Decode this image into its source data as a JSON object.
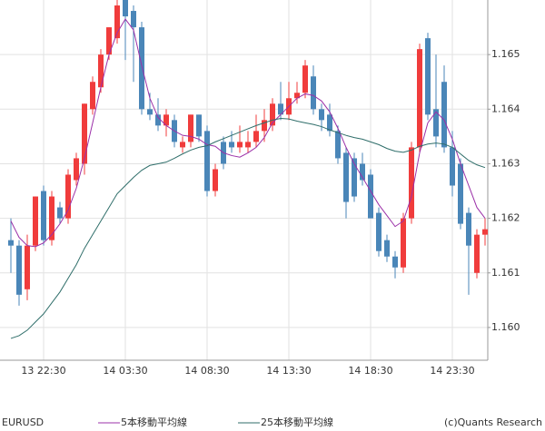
{
  "chart_data": {
    "type": "candlestick",
    "symbol": "EURUSD",
    "credit": "(c)Quants Research",
    "categories": [
      null,
      null,
      null,
      null,
      "13 22:30",
      null,
      null,
      null,
      null,
      null,
      null,
      null,
      null,
      null,
      "14 03:30",
      null,
      null,
      null,
      null,
      null,
      null,
      null,
      null,
      null,
      "14 08:30",
      null,
      null,
      null,
      null,
      null,
      null,
      null,
      null,
      null,
      "14 13:30",
      null,
      null,
      null,
      null,
      null,
      null,
      null,
      null,
      null,
      "14 18:30",
      null,
      null,
      null,
      null,
      null,
      null,
      null,
      null,
      null,
      "14 23:30",
      null,
      null,
      null,
      null
    ],
    "open": [
      1.1616,
      1.1615,
      1.1607,
      1.1615,
      1.1625,
      1.1616,
      1.1622,
      1.162,
      1.1627,
      1.163,
      1.164,
      1.1644,
      1.165,
      1.1653,
      1.166,
      1.1658,
      1.1655,
      1.164,
      1.1639,
      1.1637,
      1.1638,
      1.1633,
      1.1634,
      1.1639,
      1.1636,
      1.1625,
      1.1634,
      1.1634,
      1.1633,
      1.1633,
      1.1634,
      1.1636,
      1.1637,
      1.1641,
      1.1639,
      1.1642,
      1.1643,
      1.1646,
      1.164,
      1.1639,
      1.1636,
      1.1632,
      1.1631,
      1.163,
      1.1628,
      1.1621,
      1.1616,
      1.1613,
      1.1611,
      1.162,
      1.1633,
      1.1653,
      1.164,
      1.1645,
      1.1633,
      1.163,
      1.1621,
      1.161,
      1.1617
    ],
    "high": [
      1.162,
      1.1616,
      1.1617,
      1.1624,
      1.1626,
      1.1625,
      1.1623,
      1.1629,
      1.1632,
      1.1641,
      1.1646,
      1.1651,
      1.1655,
      1.166,
      1.1661,
      1.1659,
      1.1656,
      1.1643,
      1.1642,
      1.164,
      1.1639,
      1.1635,
      1.1639,
      1.1639,
      1.1637,
      1.163,
      1.1635,
      1.1636,
      1.1637,
      1.1636,
      1.1639,
      1.164,
      1.1642,
      1.1645,
      1.1645,
      1.1645,
      1.1649,
      1.1648,
      1.1641,
      1.1641,
      1.1637,
      1.1633,
      1.1632,
      1.1632,
      1.1629,
      1.1622,
      1.1617,
      1.1614,
      1.1621,
      1.1634,
      1.1652,
      1.1654,
      1.165,
      1.1648,
      1.1636,
      1.1631,
      1.1622,
      1.1618,
      1.162
    ],
    "low": [
      1.161,
      1.1604,
      1.1605,
      1.1614,
      1.1615,
      1.1615,
      1.1619,
      1.1619,
      1.1626,
      1.1628,
      1.1639,
      1.1643,
      1.1649,
      1.1652,
      1.1649,
      1.1645,
      1.1639,
      1.1638,
      1.1636,
      1.1635,
      1.1633,
      1.1632,
      1.1633,
      1.1634,
      1.1624,
      1.1624,
      1.1629,
      1.1632,
      1.1632,
      1.1632,
      1.1633,
      1.1634,
      1.1636,
      1.1638,
      1.1638,
      1.1641,
      1.1642,
      1.1639,
      1.1636,
      1.1635,
      1.163,
      1.162,
      1.1623,
      1.1626,
      1.162,
      1.1613,
      1.1612,
      1.1609,
      1.161,
      1.1619,
      1.1632,
      1.1638,
      1.1633,
      1.1632,
      1.1624,
      1.1618,
      1.1606,
      1.1609,
      1.1615
    ],
    "close": [
      1.1615,
      1.1606,
      1.1615,
      1.1624,
      1.1616,
      1.1624,
      1.162,
      1.1628,
      1.1631,
      1.1641,
      1.1645,
      1.165,
      1.1655,
      1.1659,
      1.1657,
      1.1655,
      1.164,
      1.1639,
      1.1637,
      1.1639,
      1.1634,
      1.1634,
      1.1639,
      1.1635,
      1.1625,
      1.1629,
      1.163,
      1.1633,
      1.1634,
      1.1634,
      1.1636,
      1.1638,
      1.1641,
      1.1639,
      1.1642,
      1.1643,
      1.1648,
      1.164,
      1.1638,
      1.1636,
      1.1631,
      1.1623,
      1.1624,
      1.1627,
      1.162,
      1.1614,
      1.1613,
      1.1611,
      1.162,
      1.1633,
      1.1651,
      1.1639,
      1.1635,
      1.1633,
      1.1626,
      1.1619,
      1.1615,
      1.1617,
      1.1618
    ],
    "up_color": "#f03c3c",
    "down_color": "#4a86b8",
    "series": [
      {
        "name": "5本移動平均線",
        "color": "#9b30a8",
        "values": [
          1.16195,
          1.16165,
          1.1615,
          1.16148,
          1.16155,
          1.1617,
          1.1619,
          1.16215,
          1.16255,
          1.1631,
          1.16375,
          1.1644,
          1.165,
          1.1654,
          1.16565,
          1.16545,
          1.1648,
          1.1642,
          1.16385,
          1.1637,
          1.1636,
          1.16352,
          1.1635,
          1.16345,
          1.16335,
          1.16332,
          1.1632,
          1.16315,
          1.16312,
          1.1632,
          1.1633,
          1.16348,
          1.16375,
          1.1639,
          1.16405,
          1.1642,
          1.16428,
          1.16425,
          1.16415,
          1.16395,
          1.16365,
          1.1633,
          1.163,
          1.16275,
          1.1625,
          1.16225,
          1.16205,
          1.16185,
          1.16195,
          1.1624,
          1.1632,
          1.16375,
          1.16395,
          1.1638,
          1.16345,
          1.163,
          1.1626,
          1.1622,
          1.162
        ]
      },
      {
        "name": "25本移動平均線",
        "color": "#2f6e6a",
        "values": [
          1.1598,
          1.15985,
          1.15995,
          1.1601,
          1.16025,
          1.16045,
          1.16065,
          1.1609,
          1.16115,
          1.16145,
          1.1617,
          1.16195,
          1.1622,
          1.16245,
          1.1626,
          1.16275,
          1.16288,
          1.16297,
          1.163,
          1.16303,
          1.1631,
          1.16318,
          1.16325,
          1.1633,
          1.16333,
          1.1634,
          1.16346,
          1.16352,
          1.16358,
          1.16364,
          1.1637,
          1.16375,
          1.1638,
          1.16383,
          1.16382,
          1.16378,
          1.16375,
          1.16372,
          1.16368,
          1.16362,
          1.16357,
          1.16352,
          1.16348,
          1.16345,
          1.1634,
          1.16335,
          1.16328,
          1.16323,
          1.16321,
          1.16325,
          1.16332,
          1.16336,
          1.16338,
          1.16336,
          1.1633,
          1.16318,
          1.16306,
          1.16298,
          1.16293
        ]
      }
    ],
    "ylim": [
      1.1594,
      1.166
    ],
    "yticks": [
      {
        "value": 1.16,
        "label": "1.160"
      },
      1.161,
      1.162,
      1.163,
      1.164,
      1.165
    ],
    "grid": true
  }
}
